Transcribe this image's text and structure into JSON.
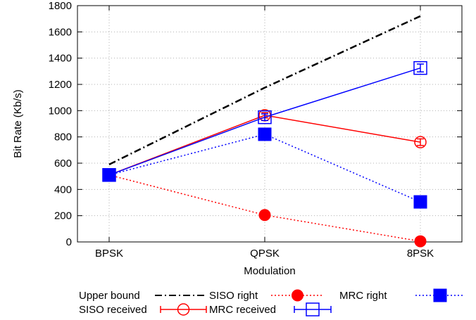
{
  "chart_data": {
    "type": "line",
    "title": "",
    "xlabel": "Modulation",
    "ylabel": "Bit Rate (Kb/s)",
    "categories": [
      "BPSK",
      "QPSK",
      "8PSK"
    ],
    "ylim": [
      0,
      1800
    ],
    "yticks": [
      0,
      200,
      400,
      600,
      800,
      1000,
      1200,
      1400,
      1600,
      1800
    ],
    "grid": true,
    "legend_position": "bottom",
    "series": [
      {
        "name": "Upper bound",
        "values": [
          590,
          1175,
          1720
        ],
        "color": "#000000",
        "style": "dash-dot",
        "marker": "none"
      },
      {
        "name": "SISO right",
        "values": [
          510,
          205,
          5
        ],
        "color": "#ff0000",
        "style": "dotted",
        "marker": "filled-circle"
      },
      {
        "name": "MRC right",
        "values": [
          510,
          820,
          305
        ],
        "color": "#0000ff",
        "style": "dotted",
        "marker": "filled-square"
      },
      {
        "name": "SISO received",
        "values": [
          510,
          965,
          760
        ],
        "errors": [
          0,
          20,
          25
        ],
        "color": "#ff0000",
        "style": "solid",
        "marker": "open-circle"
      },
      {
        "name": "MRC received",
        "values": [
          510,
          950,
          1325
        ],
        "errors": [
          0,
          25,
          30
        ],
        "color": "#0000ff",
        "style": "solid",
        "marker": "open-square"
      }
    ]
  }
}
